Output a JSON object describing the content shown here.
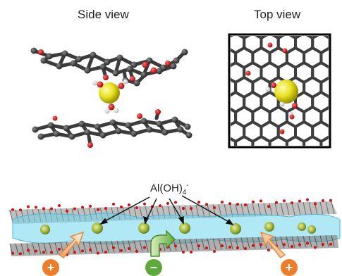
{
  "labels": {
    "side_view": "Side view",
    "top_view": "Top view",
    "ion_base": "Al(OH)",
    "ion_sub": "4",
    "ion_sup": "-"
  },
  "charges": {
    "left": "+",
    "middle": "−",
    "right": "+"
  },
  "colors": {
    "carbon": "#3a3a3a",
    "oxygen": "#d01010",
    "hydrogen": "#f2f2f2",
    "aluminum": "#e8e020",
    "electrolyte": "#6fd6ec",
    "positive": "#ee7d2a",
    "negative": "#5caa3a"
  }
}
